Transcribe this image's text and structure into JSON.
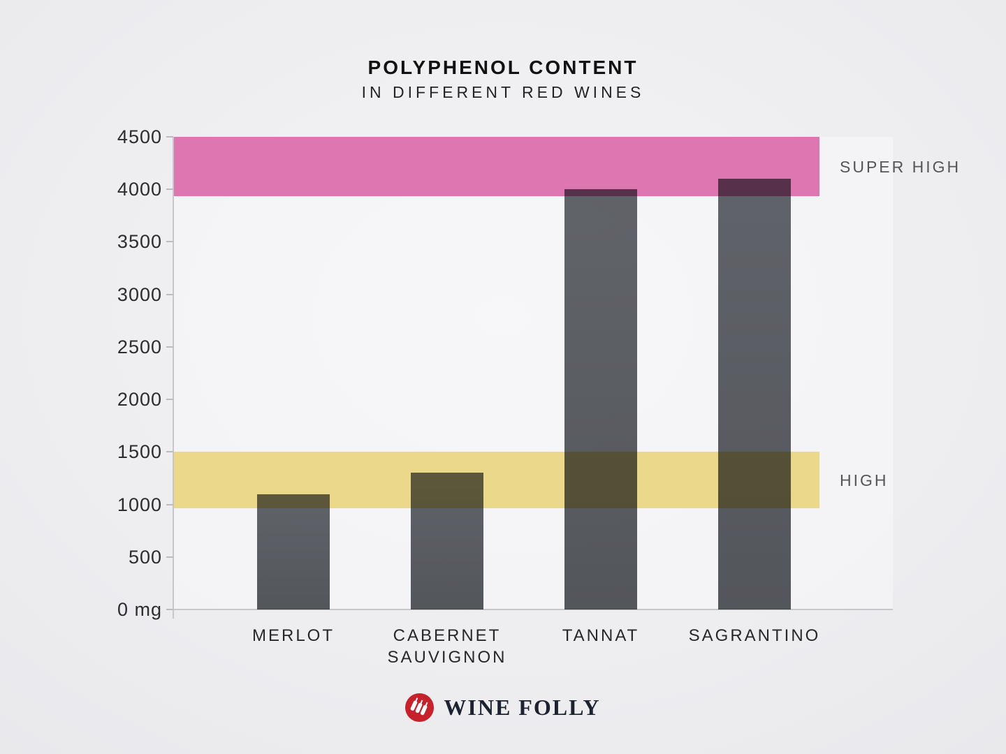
{
  "header": {
    "title": "POLYPHENOL CONTENT",
    "subtitle": "IN DIFFERENT RED WINES"
  },
  "chart_data": {
    "type": "bar",
    "title": "POLYPHENOL CONTENT",
    "subtitle": "IN DIFFERENT RED WINES",
    "unit": "mg",
    "categories": [
      "MERLOT",
      "CABERNET\nSAUVIGNON",
      "TANNAT",
      "SAGRANTINO"
    ],
    "values": [
      1100,
      1300,
      4000,
      4100
    ],
    "xlabel": "",
    "ylabel": "mg",
    "ylim": [
      0,
      4500
    ],
    "ytick_step": 500,
    "yticks": [
      {
        "value": 4500,
        "label": "4500"
      },
      {
        "value": 4000,
        "label": "4000"
      },
      {
        "value": 3500,
        "label": "3500"
      },
      {
        "value": 3000,
        "label": "3000"
      },
      {
        "value": 2500,
        "label": "2500"
      },
      {
        "value": 2000,
        "label": "2000"
      },
      {
        "value": 1500,
        "label": "1500"
      },
      {
        "value": 1000,
        "label": "1000"
      },
      {
        "value": 500,
        "label": "500"
      },
      {
        "value": 0,
        "label": "0 mg"
      }
    ],
    "grid": false,
    "legend": "none",
    "bar_color": "#5b5e62",
    "bands": [
      {
        "label": "SUPER HIGH",
        "from": 4500,
        "to": 3935,
        "color": "#de77b1"
      },
      {
        "label": "HIGH",
        "from": 1500,
        "to": 965,
        "color": "#ecd88a"
      }
    ]
  },
  "footer": {
    "brand": "WINE FOLLY",
    "logo_icon": "wine-folly-bottles-icon",
    "logo_color": "#c5222b",
    "bottle_color": "#ffffff"
  }
}
